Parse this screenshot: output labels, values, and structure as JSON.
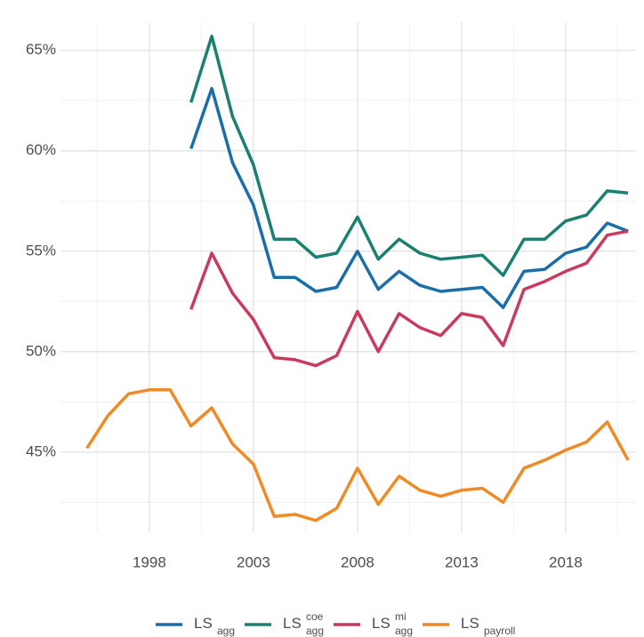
{
  "chart_data": {
    "type": "line",
    "x": [
      1995,
      1996,
      1997,
      1998,
      1999,
      2000,
      2001,
      2002,
      2003,
      2004,
      2005,
      2006,
      2007,
      2008,
      2009,
      2010,
      2011,
      2012,
      2013,
      2014,
      2015,
      2016,
      2017,
      2018,
      2019,
      2020,
      2021
    ],
    "series": [
      {
        "name": "LS",
        "sub": "agg",
        "color": "#1c6ea8",
        "values": [
          null,
          null,
          null,
          null,
          null,
          60.1,
          63.1,
          59.4,
          57.3,
          53.7,
          53.7,
          53.0,
          53.2,
          55.0,
          53.1,
          54.0,
          53.3,
          53.0,
          53.1,
          53.2,
          52.2,
          54.0,
          54.1,
          54.9,
          55.2,
          56.4,
          56.0
        ]
      },
      {
        "name": "LS",
        "sub": "agg",
        "sup": "coe",
        "color": "#1a8070",
        "values": [
          null,
          null,
          null,
          null,
          null,
          62.4,
          65.7,
          61.7,
          59.3,
          55.6,
          55.6,
          54.7,
          54.9,
          56.7,
          54.6,
          55.6,
          54.9,
          54.6,
          54.7,
          54.8,
          53.8,
          55.6,
          55.6,
          56.5,
          56.8,
          58.0,
          57.9
        ]
      },
      {
        "name": "LS",
        "sub": "agg",
        "sup": "mi",
        "color": "#c93a5c",
        "values": [
          null,
          null,
          null,
          null,
          null,
          52.1,
          54.9,
          52.9,
          51.6,
          49.7,
          49.6,
          49.3,
          49.8,
          52.0,
          50.0,
          51.9,
          51.2,
          50.8,
          51.9,
          51.7,
          50.3,
          53.1,
          53.5,
          54.0,
          54.4,
          55.8,
          56.0
        ]
      },
      {
        "name": "LS",
        "sub": "payroll",
        "color": "#f08a24",
        "values": [
          45.2,
          46.8,
          47.9,
          48.1,
          48.1,
          46.3,
          47.2,
          45.4,
          44.4,
          41.8,
          41.9,
          41.6,
          42.2,
          44.2,
          42.4,
          43.8,
          43.1,
          42.8,
          43.1,
          43.2,
          42.5,
          44.2,
          44.6,
          45.1,
          45.5,
          46.5,
          44.6
        ]
      }
    ],
    "xlim": [
      1993.73,
      2021.38
    ],
    "xticks": [
      1998,
      2003,
      2008,
      2013,
      2018
    ],
    "ylim": [
      40.97,
      66.4
    ],
    "yticks": [
      {
        "value": 45,
        "label": "45%"
      },
      {
        "value": 50,
        "label": "50%"
      },
      {
        "value": 55,
        "label": "55%"
      },
      {
        "value": 60,
        "label": "60%"
      },
      {
        "value": 65,
        "label": "65%"
      }
    ],
    "grid": true,
    "legend": "bottom"
  }
}
